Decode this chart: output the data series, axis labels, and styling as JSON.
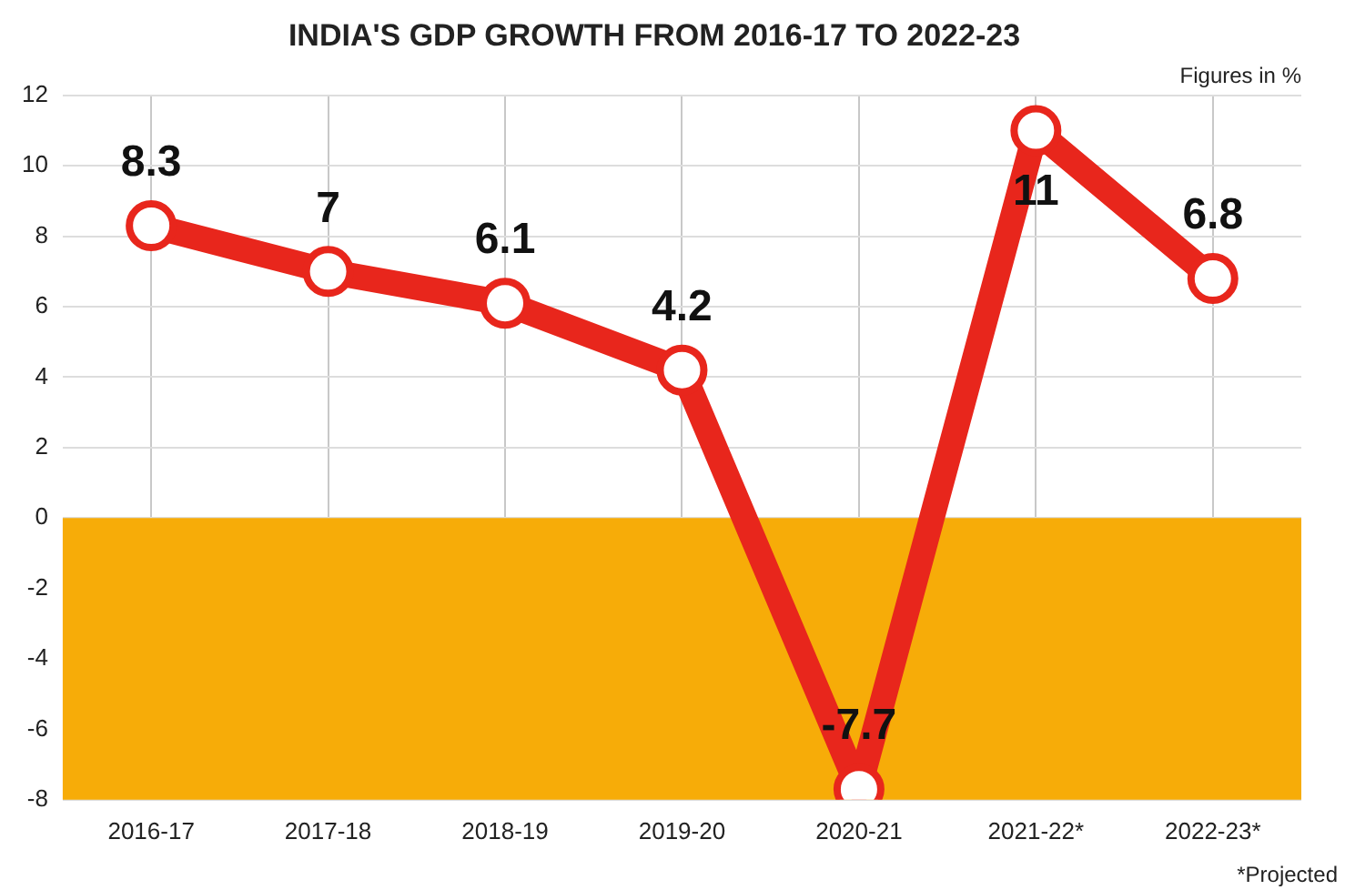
{
  "chart_data": {
    "type": "line",
    "title": "INDIA'S GDP GROWTH FROM 2016-17 TO 2022-23",
    "categories": [
      "2016-17",
      "2017-18",
      "2018-19",
      "2019-20",
      "2020-21",
      "2021-22*",
      "2022-23*"
    ],
    "series": [
      {
        "color": "#e8261c",
        "values": [
          8.3,
          7,
          6.1,
          4.2,
          -7.7,
          11,
          6.8
        ]
      }
    ],
    "ylim": [
      -8,
      12
    ],
    "yticks": [
      -8,
      -6,
      -4,
      -2,
      0,
      2,
      4,
      6,
      8,
      10,
      12
    ],
    "grid": true,
    "legend": false,
    "marker": "circle",
    "line_style": "solid",
    "data_labels": true,
    "bands": [
      {
        "axis": "y",
        "from": -8,
        "to": 0,
        "color": "#f7ac08"
      }
    ],
    "annotations": [
      "Figures in %",
      "*Projected"
    ]
  }
}
